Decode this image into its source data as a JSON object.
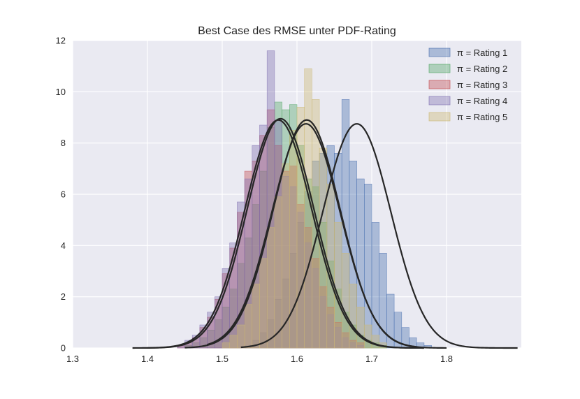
{
  "chart_data": {
    "type": "histogram",
    "title": "Best Case des RMSE unter PDF-Rating",
    "xlabel": "",
    "ylabel": "",
    "xlim": [
      1.3,
      1.9
    ],
    "ylim": [
      0,
      12
    ],
    "x_ticks": [
      "1.3",
      "1.4",
      "1.5",
      "1.6",
      "1.7",
      "1.8"
    ],
    "y_ticks": [
      "0",
      "2",
      "4",
      "6",
      "8",
      "10",
      "12"
    ],
    "grid": true,
    "legend_position": "top-right",
    "legend_prefix": "π =",
    "bin_width": 0.01,
    "series": [
      {
        "name": "Rating 1",
        "color": "#4c72b0",
        "bin_start": 1.53,
        "counts": [
          0.1,
          0.3,
          0.6,
          1.1,
          1.9,
          2.7,
          3.7,
          4.9,
          6.1,
          7.3,
          7.6,
          7.9,
          7.6,
          9.7,
          7.3,
          6.6,
          6.4,
          4.9,
          3.7,
          2.1,
          1.4,
          0.8,
          0.4,
          0.2,
          0.1
        ],
        "fit_mean": 1.68,
        "fit_peak": 8.75,
        "fit_range": [
          1.525,
          1.895
        ]
      },
      {
        "name": "Rating 2",
        "color": "#55a868",
        "bin_start": 1.45,
        "counts": [
          0.1,
          0.2,
          0.4,
          0.7,
          1.1,
          1.6,
          2.3,
          3.3,
          4.3,
          5.6,
          6.9,
          8.6,
          9.6,
          9.3,
          9.5,
          7.9,
          6.6,
          6.3,
          4.9,
          3.4,
          2.3,
          1.4,
          0.9,
          0.5,
          0.3,
          0.2,
          0.1
        ],
        "fit_mean": 1.613,
        "fit_peak": 8.9,
        "fit_range": [
          1.45,
          1.8
        ]
      },
      {
        "name": "Rating 3",
        "color": "#c44e52",
        "bin_start": 1.44,
        "counts": [
          0.1,
          0.2,
          0.4,
          0.8,
          1.2,
          1.9,
          2.9,
          3.9,
          5.3,
          6.9,
          7.3,
          8.3,
          9.3,
          7.9,
          6.9,
          7.1,
          5.6,
          4.7,
          3.5,
          2.4,
          1.6,
          1.0,
          0.6,
          0.3,
          0.2
        ],
        "fit_mean": 1.578,
        "fit_peak": 8.95,
        "fit_range": [
          1.4,
          1.76
        ]
      },
      {
        "name": "Rating 4",
        "color": "#8172b2",
        "bin_start": 1.44,
        "counts": [
          0.1,
          0.3,
          0.5,
          0.9,
          1.4,
          2.0,
          3.1,
          4.1,
          5.7,
          6.6,
          7.9,
          8.7,
          11.6,
          8.9,
          6.7,
          6.3,
          5.3,
          4.1,
          3.1,
          2.0,
          1.3,
          0.8,
          0.4,
          0.2,
          0.1
        ],
        "fit_mean": 1.575,
        "fit_peak": 8.9,
        "fit_range": [
          1.38,
          1.77
        ]
      },
      {
        "name": "Rating 5",
        "color": "#ccb974",
        "bin_start": 1.5,
        "counts": [
          0.2,
          0.5,
          0.9,
          1.7,
          2.5,
          3.5,
          4.7,
          5.9,
          7.2,
          8.5,
          9.4,
          10.9,
          9.7,
          7.8,
          6.4,
          4.9,
          3.7,
          2.5,
          1.6,
          0.9,
          0.5,
          0.2
        ],
        "fit_mean": 1.612,
        "fit_peak": 8.75,
        "fit_range": [
          1.48,
          1.76
        ]
      }
    ]
  }
}
